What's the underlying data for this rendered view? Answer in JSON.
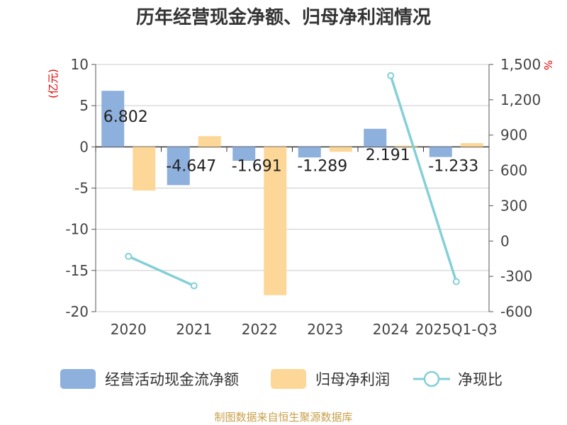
{
  "title": "历年经营现金净额、归母净利润情况",
  "source": "制图数据来自恒生聚源数据库",
  "chart_data": {
    "type": "bar",
    "categories": [
      "2020",
      "2021",
      "2022",
      "2023",
      "2024",
      "2025Q1-Q3"
    ],
    "left_axis": {
      "unit": "(亿元)",
      "min": -20,
      "max": 10,
      "ticks": [
        10,
        5,
        0,
        -5,
        -10,
        -15,
        -20
      ]
    },
    "right_axis": {
      "unit": "%",
      "min": -600,
      "max": 1500,
      "ticks": [
        1500,
        1200,
        900,
        600,
        300,
        0,
        -300,
        -600
      ],
      "tick_labels": [
        "1,500",
        "1,200",
        "900",
        "600",
        "300",
        "0",
        "-300",
        "-600"
      ]
    },
    "series": [
      {
        "name": "经营活动现金流净额",
        "kind": "bar",
        "axis": "left",
        "color": "#8eb0dc",
        "values": [
          6.802,
          -4.647,
          -1.691,
          -1.289,
          2.191,
          -1.233
        ],
        "labels": [
          "6.802",
          "-4.647",
          "-1.691",
          "-1.289",
          "2.191",
          "-1.233"
        ]
      },
      {
        "name": "归母净利润",
        "kind": "bar",
        "axis": "left",
        "color": "#fdd797",
        "values": [
          -5.3,
          1.3,
          -18.0,
          -0.6,
          0.15,
          0.45
        ]
      },
      {
        "name": "净现比",
        "kind": "line",
        "axis": "right",
        "color": "#84d0d6",
        "values": [
          -130,
          -380,
          null,
          null,
          1405,
          -345
        ]
      }
    ],
    "grid": true,
    "legend_position": "bottom"
  }
}
